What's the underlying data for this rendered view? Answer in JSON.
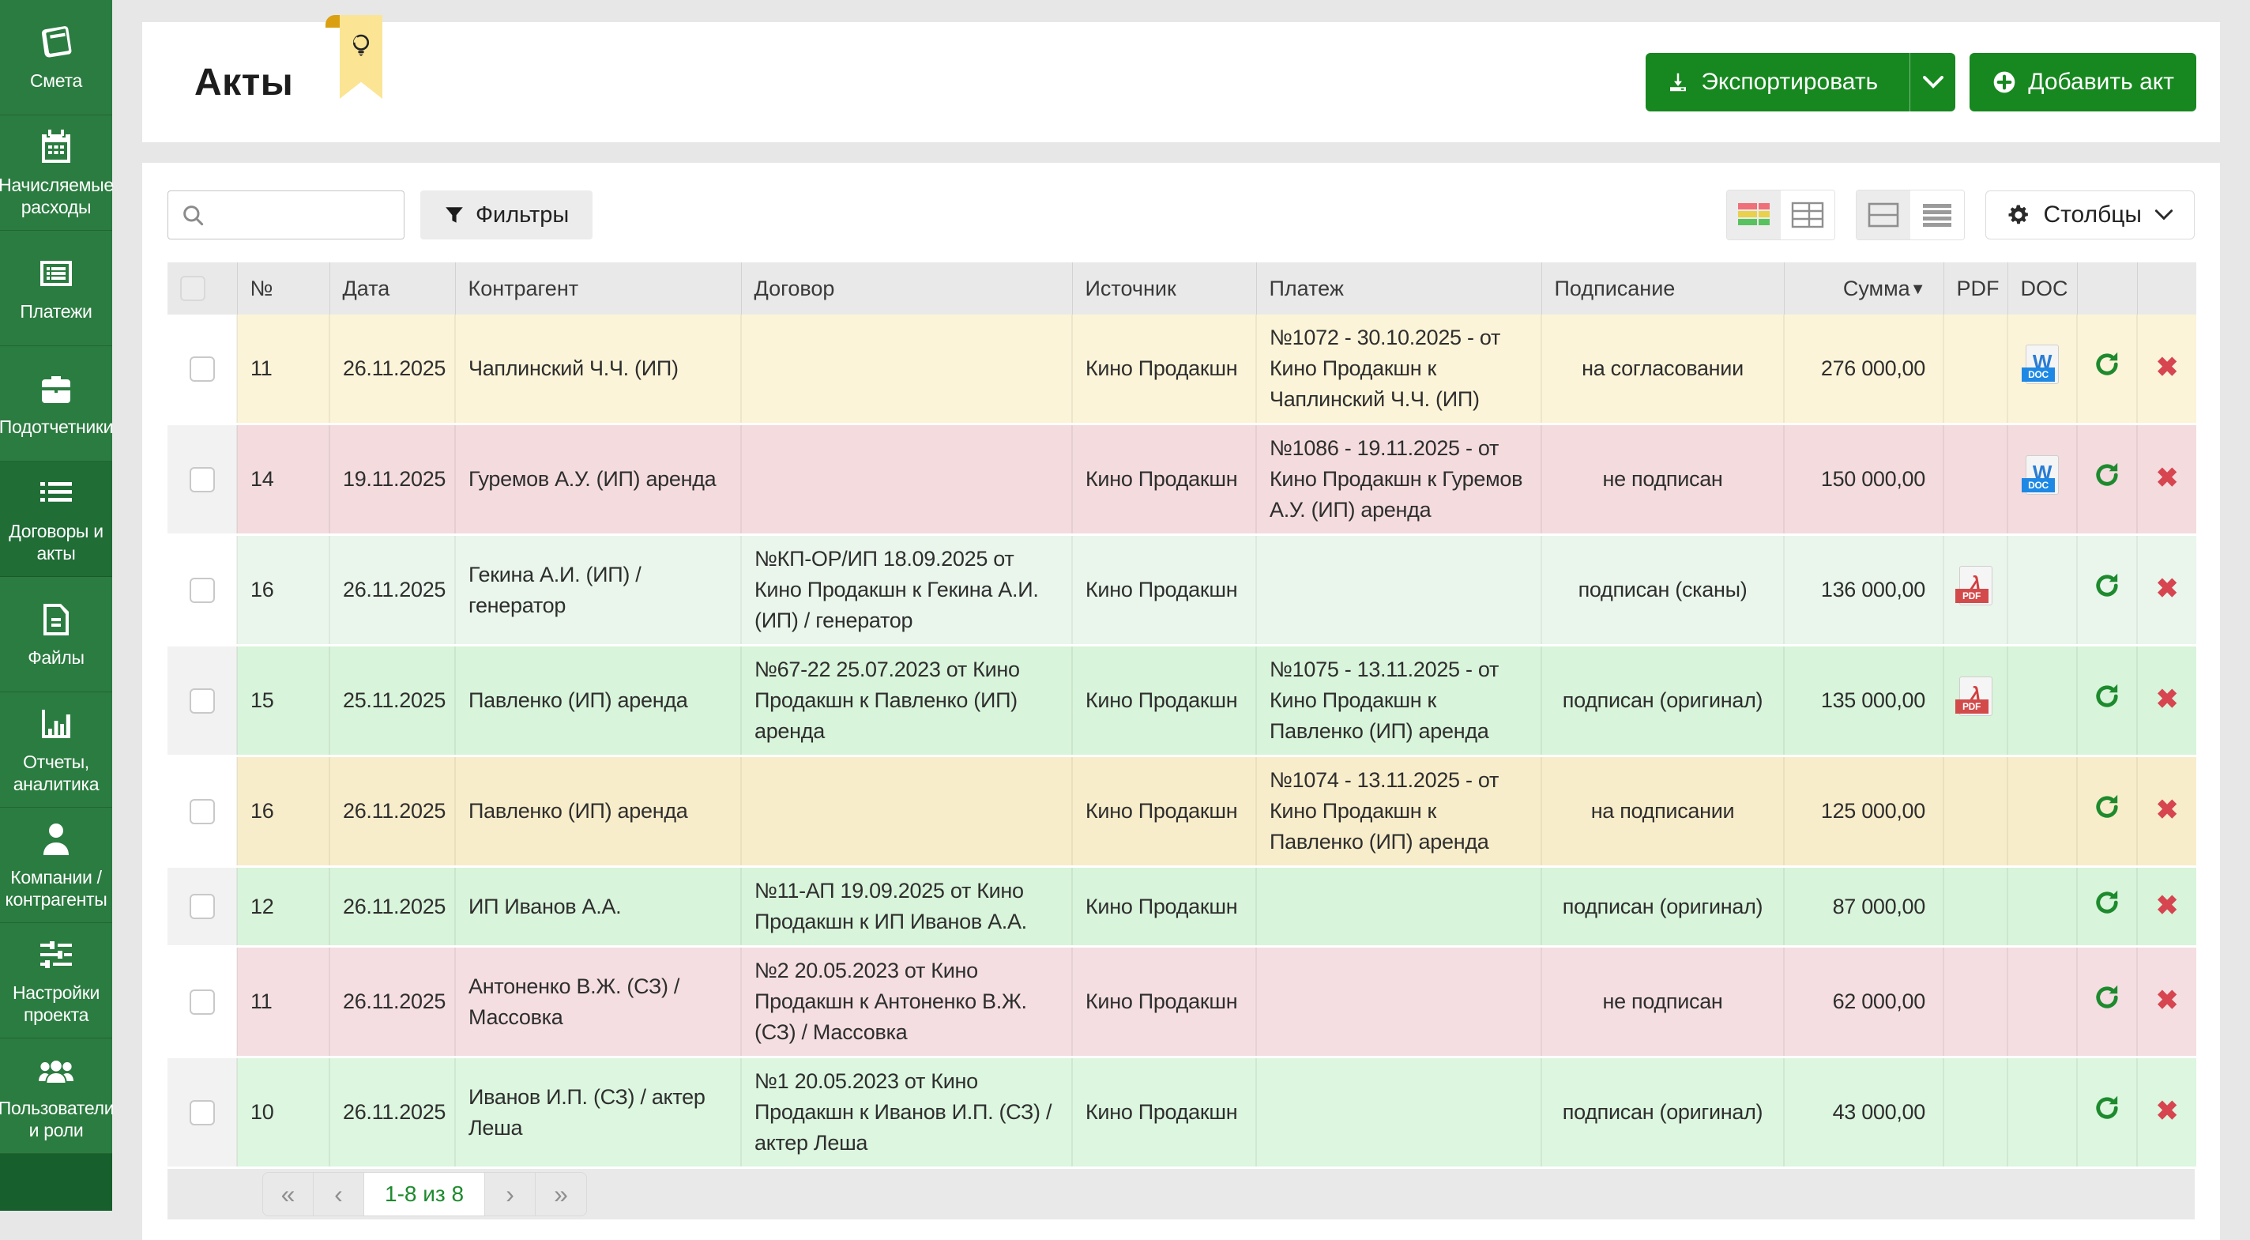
{
  "sidebar": {
    "items": [
      {
        "label": "Смета",
        "icon": "book-icon",
        "active": false
      },
      {
        "label": "Начисляемые расходы",
        "icon": "calendar-icon",
        "active": false
      },
      {
        "label": "Платежи",
        "icon": "card-list-icon",
        "active": false
      },
      {
        "label": "Подотчетники",
        "icon": "briefcase-icon",
        "active": false
      },
      {
        "label": "Договоры и акты",
        "icon": "list-icon",
        "active": true
      },
      {
        "label": "Файлы",
        "icon": "file-icon",
        "active": false
      },
      {
        "label": "Отчеты, аналитика",
        "icon": "bar-chart-icon",
        "active": false
      },
      {
        "label": "Компании / контрагенты",
        "icon": "person-icon",
        "active": false
      },
      {
        "label": "Настройки проекта",
        "icon": "sliders-icon",
        "active": false
      },
      {
        "label": "Пользователи и роли",
        "icon": "users-icon",
        "active": false
      }
    ]
  },
  "header": {
    "title": "Акты",
    "export_button": "Экспортировать",
    "add_button": "Добавить акт"
  },
  "toolbar": {
    "search_placeholder": "",
    "filters_button": "Фильтры",
    "columns_button": "Столбцы"
  },
  "table": {
    "columns": {
      "num": "№",
      "date": "Дата",
      "contractor": "Контрагент",
      "contract": "Договор",
      "source": "Источник",
      "payment": "Платеж",
      "signing": "Подписание",
      "amount": "Сумма",
      "sort_indicator": "▼",
      "pdf": "PDF",
      "doc": "DOC"
    },
    "rows": [
      {
        "num": "11",
        "date": "26.11.2025",
        "contractor": "Чаплинский Ч.Ч. (ИП)",
        "contract": "",
        "source": "Кино Продакшн",
        "payment": "№1072 - 30.10.2025 - от Кино Продакшн к Чаплинский Ч.Ч. (ИП)",
        "signing": "на согласовании",
        "amount": "276 000,00",
        "pdf": false,
        "doc": true,
        "color": "#fcf4d8",
        "check_bg": "#ffffff"
      },
      {
        "num": "14",
        "date": "19.11.2025",
        "contractor": "Гуремов А.У. (ИП) аренда",
        "contract": "",
        "source": "Кино Продакшн",
        "payment": "№1086 - 19.11.2025 - от Кино Продакшн к Гуремов А.У. (ИП) аренда",
        "signing": "не подписан",
        "amount": "150 000,00",
        "pdf": false,
        "doc": true,
        "color": "#f3dbde",
        "check_bg": "#f2f2f2"
      },
      {
        "num": "16",
        "date": "26.11.2025",
        "contractor": "Гекина А.И. (ИП) / генератор",
        "contract": "№КП-ОР/ИП 18.09.2025 от Кино Продакшн к Гекина А.И. (ИП) / генератор",
        "source": "Кино Продакшн",
        "payment": "",
        "signing": "подписан (сканы)",
        "amount": "136 000,00",
        "pdf": true,
        "doc": false,
        "color": "#eaf6ec",
        "check_bg": "#ffffff"
      },
      {
        "num": "15",
        "date": "25.11.2025",
        "contractor": "Павленко (ИП) аренда",
        "contract": "№67-22 25.07.2023 от Кино Продакшн к Павленко (ИП) аренда",
        "source": "Кино Продакшн",
        "payment": "№1075 - 13.11.2025 - от Кино Продакшн к Павленко (ИП) аренда",
        "signing": "подписан (оригинал)",
        "amount": "135 000,00",
        "pdf": true,
        "doc": false,
        "color": "#d8f4da",
        "check_bg": "#f2f2f2"
      },
      {
        "num": "16",
        "date": "26.11.2025",
        "contractor": "Павленко (ИП) аренда",
        "contract": "",
        "source": "Кино Продакшн",
        "payment": "№1074 - 13.11.2025 - от Кино Продакшн к Павленко (ИП) аренда",
        "signing": "на подписании",
        "amount": "125 000,00",
        "pdf": false,
        "doc": false,
        "color": "#f8edca",
        "check_bg": "#ffffff"
      },
      {
        "num": "12",
        "date": "26.11.2025",
        "contractor": "ИП Иванов А.А.",
        "contract": "№11-АП 19.09.2025 от Кино Продакшн к ИП Иванов А.А.",
        "source": "Кино Продакшн",
        "payment": "",
        "signing": "подписан (оригинал)",
        "amount": "87 000,00",
        "pdf": false,
        "doc": false,
        "color": "#d8f4da",
        "check_bg": "#f2f2f2"
      },
      {
        "num": "11",
        "date": "26.11.2025",
        "contractor": "Антоненко В.Ж. (СЗ) / Массовка",
        "contract": "№2 20.05.2023 от Кино Продакшн к Антоненко В.Ж. (СЗ) / Массовка",
        "source": "Кино Продакшн",
        "payment": "",
        "signing": "не подписан",
        "amount": "62 000,00",
        "pdf": false,
        "doc": false,
        "color": "#f4dee1",
        "check_bg": "#ffffff"
      },
      {
        "num": "10",
        "date": "26.11.2025",
        "contractor": "Иванов И.П. (СЗ) / актер Леша",
        "contract": "№1 20.05.2023 от Кино Продакшн к Иванов И.П. (СЗ) / актер Леша",
        "source": "Кино Продакшн",
        "payment": "",
        "signing": "подписан (оригинал)",
        "amount": "43 000,00",
        "pdf": false,
        "doc": false,
        "color": "#dcf6df",
        "check_bg": "#f2f2f2"
      }
    ]
  },
  "icons": {
    "doc_letter": "W",
    "doc_badge": "DOC",
    "pdf_letter": "λ",
    "pdf_badge": "PDF",
    "delete_glyph": "✖"
  },
  "pagination": {
    "first": "«",
    "prev": "‹",
    "range_label": "1-8 из 8",
    "next": "›",
    "last": "»"
  },
  "colors": {
    "accent_green": "#17871f",
    "sidebar_green": "#2b7c40",
    "sidebar_active": "#206d36",
    "header_gray": "#e9e9e9",
    "page_bg": "#e7e7e7",
    "pager_green_text": "#1d8a2e",
    "refresh_green": "#1d8a2e",
    "delete_red": "#d64550",
    "ribbon_yellow": "#fbe595"
  }
}
